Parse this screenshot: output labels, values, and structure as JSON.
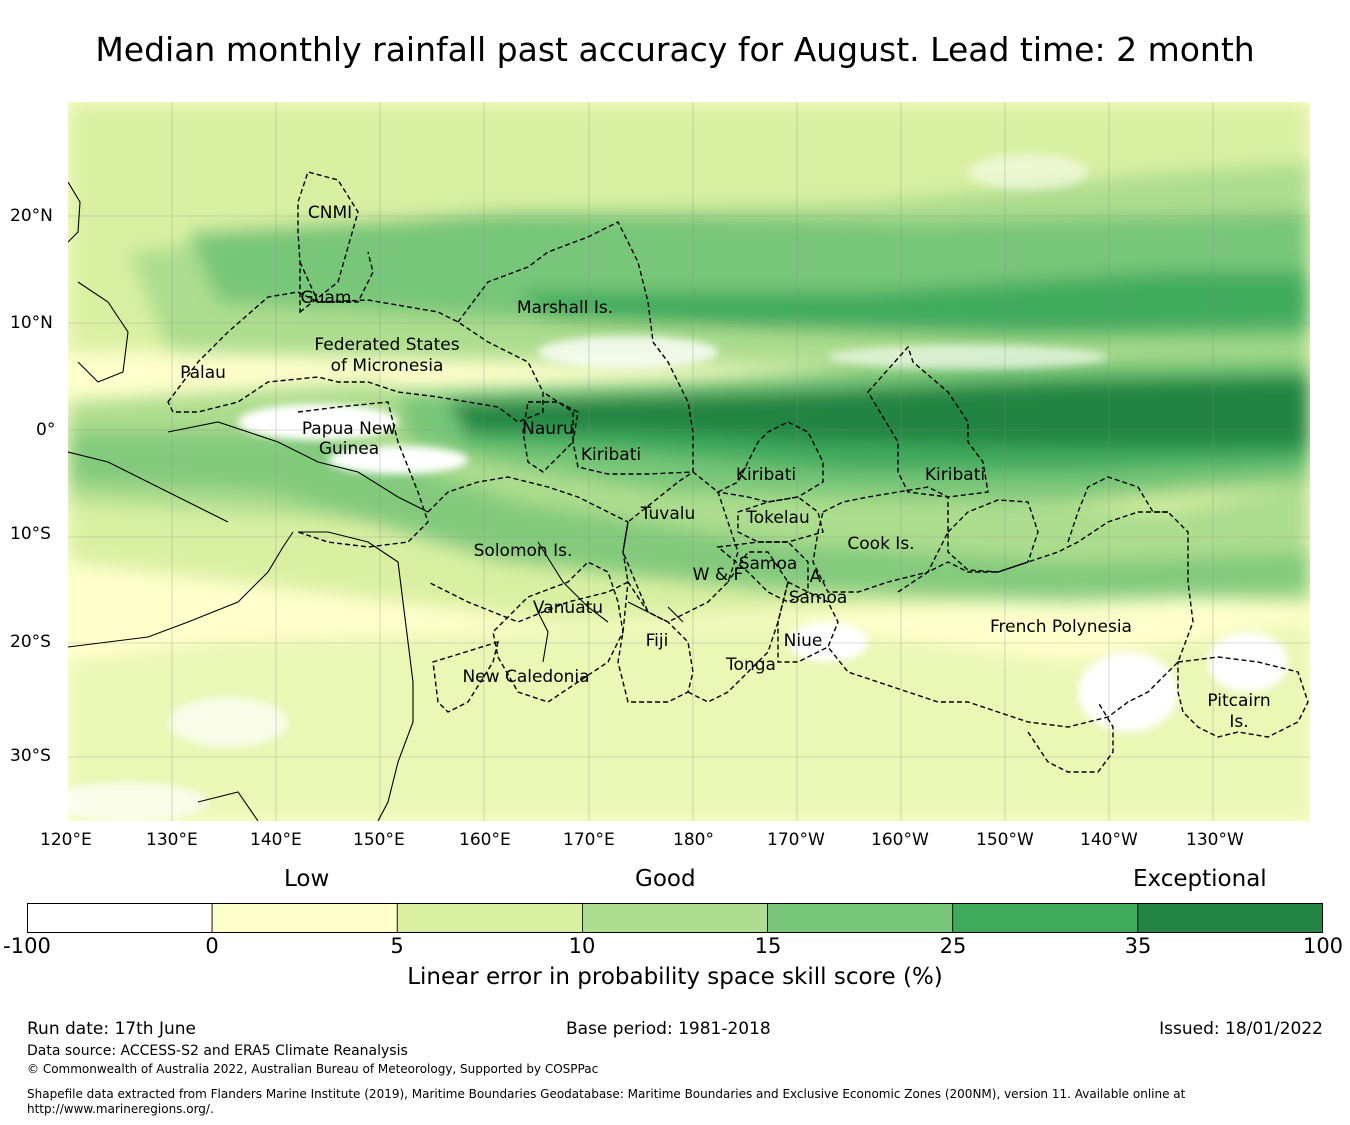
{
  "title": "Median monthly rainfall past accuracy for August. Lead time: 2 month",
  "map": {
    "lon_ticks": [
      "120°E",
      "130°E",
      "140°E",
      "150°E",
      "160°E",
      "170°E",
      "180°",
      "170°W",
      "160°W",
      "150°W",
      "140°W",
      "130°W"
    ],
    "lat_ticks": [
      "20°N",
      "10°N",
      "0°",
      "10°S",
      "20°S",
      "30°S"
    ],
    "regions": [
      "CNMI",
      "Guam",
      "Marshall Is.",
      "Palau",
      "Federated States",
      "of Micronesia",
      "Papua New",
      "Guinea",
      "Nauru",
      "Kiribati",
      "Kiribati",
      "Kiribati",
      "Tuvalu",
      "Tokelau",
      "Solomon Is.",
      "Cook Is.",
      "Samoa",
      "W & F",
      "A.",
      "Samoa",
      "Vanuatu",
      "Fiji",
      "Niue",
      "Tonga",
      "French Polynesia",
      "New Caledonia",
      "Pitcairn",
      "Is."
    ]
  },
  "colorbar": {
    "categories": [
      "Low",
      "Good",
      "Exceptional"
    ],
    "ticks": [
      "-100",
      "0",
      "5",
      "10",
      "15",
      "25",
      "35",
      "100"
    ],
    "colors": [
      "#ffffff",
      "#ffffcc",
      "#d9f0a3",
      "#addd8e",
      "#78c679",
      "#41ab5d",
      "#238443"
    ],
    "label": "Linear error in probability space skill score (%)"
  },
  "footer": {
    "run_date": "Run date: 17th June",
    "base_period": "Base period: 1981-2018",
    "issued": "Issued: 18/01/2022",
    "data_source": "Data source: ACCESS-S2 and ERA5 Climate Reanalysis",
    "copyright": "© Commonwealth of Australia 2022, Australian Bureau of Meteorology, Supported by COSPPac",
    "shapefile_line1": "Shapefile data extracted from Flanders Marine Institute (2019), Maritime Boundaries Geodatabase: Maritime Boundaries and Exclusive Economic Zones (200NM), version 11. Available online at",
    "shapefile_line2": "http://www.marineregions.org/."
  }
}
